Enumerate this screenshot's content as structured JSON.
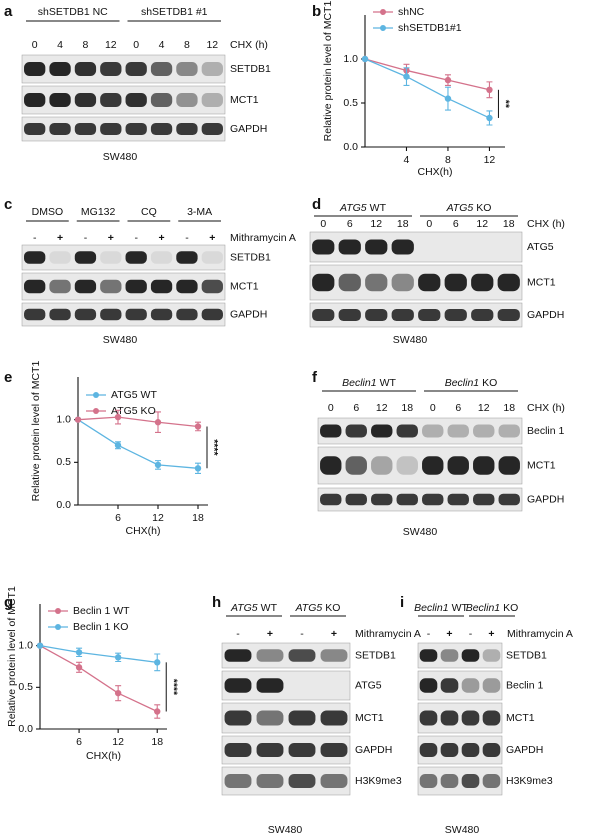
{
  "panel_labels": [
    "a",
    "b",
    "c",
    "d",
    "e",
    "f",
    "g",
    "h",
    "i"
  ],
  "blots": [
    {
      "groups": [
        "shSETDB1 NC",
        "shSETDB1 #1"
      ],
      "lanes": [
        "0",
        "4",
        "8",
        "12",
        "0",
        "4",
        "8",
        "12"
      ],
      "lane_header": "CHX (h)",
      "rows": [
        "SETDB1",
        "MCT1",
        "GAPDH"
      ],
      "caption": "SW480"
    },
    {
      "groups": [
        "DMSO",
        "MG132",
        "CQ",
        "3-MA"
      ],
      "lanes": [
        "-",
        "+",
        "-",
        "+",
        "-",
        "+",
        "-",
        "+"
      ],
      "lane_header": "Mithramycin A",
      "rows": [
        "SETDB1",
        "MCT1",
        "GAPDH"
      ],
      "caption": "SW480"
    },
    {
      "groups": [
        {
          "italic": "ATG5",
          "text": "WT"
        },
        {
          "italic": "ATG5",
          "text": "KO"
        }
      ],
      "lanes": [
        "0",
        "6",
        "12",
        "18",
        "0",
        "6",
        "12",
        "18"
      ],
      "lane_header": "CHX (h)",
      "rows": [
        "ATG5",
        "MCT1",
        "GAPDH"
      ],
      "caption": "SW480"
    },
    {
      "groups": [
        {
          "italic": "Beclin1",
          "text": "WT"
        },
        {
          "italic": "Beclin1",
          "text": "KO"
        }
      ],
      "lanes": [
        "0",
        "6",
        "12",
        "18",
        "0",
        "6",
        "12",
        "18"
      ],
      "lane_header": "CHX (h)",
      "rows": [
        "Beclin 1",
        "MCT1",
        "GAPDH"
      ],
      "caption": "SW480"
    },
    {
      "groups": [
        {
          "italic": "ATG5",
          "text": "WT"
        },
        {
          "italic": "ATG5",
          "text": "KO"
        }
      ],
      "lanes": [
        "-",
        "+",
        "-",
        "+"
      ],
      "lane_header": "Mithramycin A",
      "rows": [
        "SETDB1",
        "ATG5",
        "MCT1",
        "GAPDH",
        "H3K9me3"
      ],
      "caption": "SW480"
    },
    {
      "groups": [
        {
          "italic": "Beclin1",
          "text": "WT"
        },
        {
          "italic": "Beclin1",
          "text": "KO"
        }
      ],
      "lanes": [
        "-",
        "+",
        "-",
        "+"
      ],
      "lane_header": "Mithramycin A",
      "rows": [
        "SETDB1",
        "Beclin 1",
        "MCT1",
        "GAPDH",
        "H3K9me3"
      ],
      "caption": "SW480"
    }
  ],
  "chart_data": [
    {
      "type": "line",
      "x": [
        0,
        4,
        8,
        12
      ],
      "xlim": [
        0,
        13.5
      ],
      "xticks": [
        4,
        8,
        12
      ],
      "ylim": [
        0,
        1.5
      ],
      "yticks": [
        {
          "value": 0,
          "label": "0.0"
        },
        0.5,
        {
          "value": 1,
          "label": "1.0"
        }
      ],
      "y_label": "Relative protein level of MCT1",
      "x_label": "CHX(h)",
      "legend": "top-left",
      "annotation": "**",
      "series": [
        {
          "name": "shNC",
          "color": "#d4728b",
          "values": [
            1,
            0.87,
            0.76,
            0.65
          ],
          "errors": [
            0,
            0.07,
            0.06,
            0.09
          ]
        },
        {
          "name": "shSETDB1#1",
          "color": "#5db5e1",
          "values": [
            1,
            0.8,
            0.55,
            0.33
          ],
          "errors": [
            0,
            0.1,
            0.13,
            0.08
          ]
        }
      ]
    },
    {
      "type": "line",
      "x": [
        0,
        6,
        12,
        18
      ],
      "xlim": [
        0,
        19.5
      ],
      "xticks": [
        6,
        12,
        18
      ],
      "ylim": [
        0,
        1.5
      ],
      "yticks": [
        {
          "value": 0,
          "label": "0.0"
        },
        0.5,
        {
          "value": 1,
          "label": "1.0"
        }
      ],
      "y_label": "Relative protein level of MCT1",
      "x_label": "CHX(h)",
      "legend": "top-left",
      "annotation": "****",
      "series": [
        {
          "name": "ATG5 WT",
          "color": "#5db5e1",
          "values": [
            1,
            0.7,
            0.47,
            0.43
          ],
          "errors": [
            0,
            0.04,
            0.05,
            0.06
          ]
        },
        {
          "name": "ATG5 KO",
          "color": "#d4728b",
          "values": [
            1,
            1.03,
            0.97,
            0.92
          ],
          "errors": [
            0,
            0.08,
            0.12,
            0.05
          ]
        }
      ]
    },
    {
      "type": "line",
      "x": [
        0,
        6,
        12,
        18
      ],
      "xlim": [
        0,
        19.5
      ],
      "xticks": [
        6,
        12,
        18
      ],
      "ylim": [
        0,
        1.5
      ],
      "yticks": [
        {
          "value": 0,
          "label": "0.0"
        },
        0.5,
        {
          "value": 1,
          "label": "1.0"
        }
      ],
      "y_label": "Relative protein level of MCT1",
      "x_label": "CHX(h)",
      "legend": "top-left",
      "annotation": "****",
      "series": [
        {
          "name": "Beclin 1 WT",
          "color": "#d4728b",
          "values": [
            1,
            0.74,
            0.43,
            0.21
          ],
          "errors": [
            0,
            0.06,
            0.09,
            0.08
          ]
        },
        {
          "name": "Beclin 1 KO",
          "color": "#5db5e1",
          "values": [
            1,
            0.92,
            0.86,
            0.8
          ],
          "errors": [
            0,
            0.05,
            0.05,
            0.1
          ]
        }
      ]
    }
  ]
}
